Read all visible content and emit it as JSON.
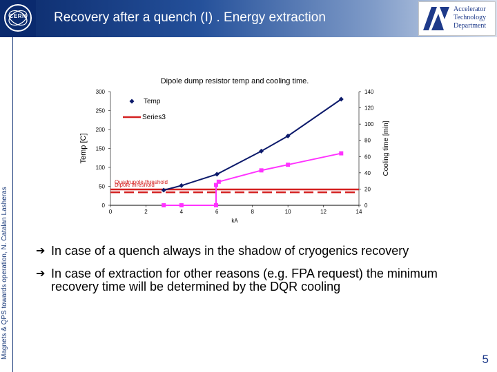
{
  "slide": {
    "title": "Recovery after a quench (I) . Energy extraction",
    "side_text": "Magnets & QPS towards operation, N. Catalan Lasheras",
    "page_number": "5",
    "cern_logo_text": "CERN",
    "atd_logo_text": "Accelerator\nTechnology\nDepartment",
    "bullets": [
      "In case of a quench always in the shadow of cryogenics recovery",
      "In case of extraction for other reasons (e.g. FPA request) the minimum recovery time will be determined by the DQR cooling"
    ],
    "colors": {
      "header_dark": "#0b2a6b",
      "temp_series": "#0c1a6b",
      "series3": "#ff33ff",
      "threshold": "#d42020"
    }
  },
  "chart_data": {
    "type": "line",
    "title": "Dipole dump resistor temp and cooling time.",
    "xlabel": "kA",
    "ylabel": "Temp [C]",
    "y2label": "Cooling time [min]",
    "xlim": [
      0,
      14
    ],
    "ylim": [
      0,
      300
    ],
    "y2lim": [
      0,
      140
    ],
    "x_ticks": [
      0,
      2,
      4,
      6,
      8,
      10,
      12,
      14
    ],
    "y_ticks": [
      0,
      50,
      100,
      150,
      200,
      250,
      300
    ],
    "y2_ticks": [
      0,
      20,
      40,
      60,
      80,
      100,
      120,
      140
    ],
    "legend_position": "top-left",
    "series": [
      {
        "name": "Temp",
        "axis": "left",
        "color": "#0c1a6b",
        "marker": "diamond",
        "x": [
          3,
          4,
          6,
          8.5,
          10,
          13
        ],
        "y": [
          40,
          52,
          82,
          143,
          183,
          280
        ]
      },
      {
        "name": "Series3",
        "axis": "right",
        "color": "#ff33ff",
        "marker": "square",
        "x": [
          3,
          4,
          5.95,
          5.95,
          6.1,
          8.5,
          10,
          13
        ],
        "y": [
          0,
          0,
          0,
          25,
          29,
          43,
          50,
          64
        ]
      }
    ],
    "thresholds": [
      {
        "label": "Quadrupole threshold",
        "axis": "right",
        "value": 19.5,
        "style": "solid",
        "color": "#d42020"
      },
      {
        "label": "Dipole threshold",
        "axis": "right",
        "value": 16,
        "style": "dashed",
        "color": "#d42020"
      }
    ]
  }
}
